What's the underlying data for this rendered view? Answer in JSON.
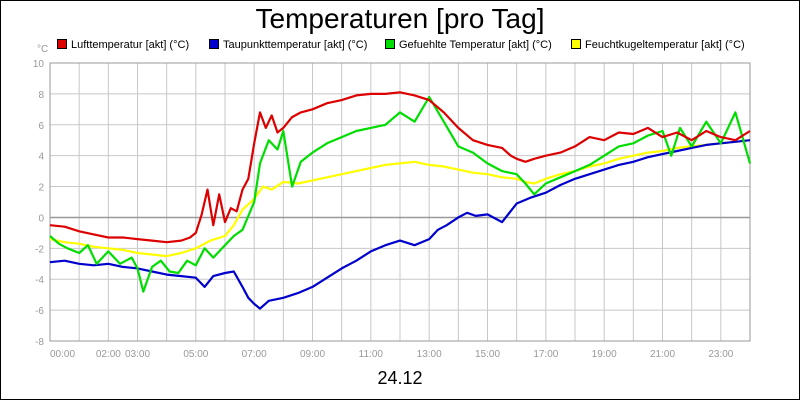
{
  "chart_data": {
    "type": "line",
    "title": "Temperaturen [pro Tag]",
    "ylabel": "°C",
    "xlabel": "24.12",
    "ylim": [
      -8,
      10
    ],
    "xlim": [
      0,
      24
    ],
    "yticks": [
      "-8",
      "-6",
      "-4",
      "-2",
      "0",
      "2",
      "4",
      "6",
      "8",
      "10"
    ],
    "xticks": [
      "00:00",
      "02:00",
      "03:00",
      "05:00",
      "07:00",
      "09:00",
      "11:00",
      "13:00",
      "15:00",
      "17:00",
      "19:00",
      "21:00",
      "23:00"
    ],
    "xtick_hours": [
      0,
      2,
      3,
      5,
      7,
      9,
      11,
      13,
      15,
      17,
      19,
      21,
      23
    ],
    "grid": true,
    "legend_position": "top",
    "series": [
      {
        "name": "Lufttemperatur [akt] (°C)",
        "color": "#dd0000",
        "x": [
          0,
          0.5,
          1,
          1.5,
          2,
          2.5,
          3,
          3.5,
          4,
          4.5,
          4.8,
          5,
          5.2,
          5.4,
          5.6,
          5.8,
          6,
          6.2,
          6.4,
          6.6,
          6.8,
          7,
          7.2,
          7.4,
          7.6,
          7.8,
          8,
          8.3,
          8.6,
          9,
          9.5,
          10,
          10.5,
          11,
          11.5,
          12,
          12.5,
          13,
          13.5,
          14,
          14.5,
          15,
          15.5,
          15.8,
          16,
          16.3,
          16.6,
          17,
          17.5,
          18,
          18.5,
          19,
          19.5,
          20,
          20.5,
          21,
          21.5,
          22,
          22.5,
          23,
          23.5,
          24
        ],
        "values": [
          -0.5,
          -0.6,
          -0.9,
          -1.1,
          -1.3,
          -1.3,
          -1.4,
          -1.5,
          -1.6,
          -1.5,
          -1.3,
          -1.0,
          0.2,
          1.8,
          -0.5,
          1.5,
          -0.3,
          0.6,
          0.4,
          1.8,
          2.5,
          4.8,
          6.8,
          5.8,
          6.6,
          5.5,
          5.8,
          6.5,
          6.8,
          7.0,
          7.4,
          7.6,
          7.9,
          8.0,
          8.0,
          8.1,
          7.9,
          7.6,
          6.8,
          5.8,
          5.0,
          4.7,
          4.5,
          4.0,
          3.8,
          3.6,
          3.8,
          4.0,
          4.2,
          4.6,
          5.2,
          5.0,
          5.5,
          5.4,
          5.8,
          5.2,
          5.5,
          5.0,
          5.6,
          5.2,
          5.0,
          5.6
        ]
      },
      {
        "name": "Taupunkttemperatur [akt] (°C)",
        "color": "#0000cc",
        "x": [
          0,
          0.5,
          1,
          1.5,
          2,
          2.5,
          3,
          3.5,
          4,
          4.5,
          5,
          5.3,
          5.6,
          6,
          6.3,
          6.6,
          6.8,
          7,
          7.2,
          7.5,
          8,
          8.5,
          9,
          9.5,
          10,
          10.5,
          11,
          11.5,
          12,
          12.5,
          13,
          13.3,
          13.6,
          14,
          14.3,
          14.6,
          15,
          15.5,
          16,
          16.5,
          17,
          17.5,
          18,
          18.5,
          19,
          19.5,
          20,
          20.5,
          21,
          21.5,
          22,
          22.5,
          23,
          23.5,
          24
        ],
        "values": [
          -2.9,
          -2.8,
          -3.0,
          -3.1,
          -3.0,
          -3.2,
          -3.3,
          -3.5,
          -3.7,
          -3.8,
          -3.9,
          -4.5,
          -3.8,
          -3.6,
          -3.5,
          -4.5,
          -5.2,
          -5.6,
          -5.9,
          -5.4,
          -5.2,
          -4.9,
          -4.5,
          -3.9,
          -3.3,
          -2.8,
          -2.2,
          -1.8,
          -1.5,
          -1.8,
          -1.4,
          -0.8,
          -0.5,
          0.0,
          0.3,
          0.1,
          0.2,
          -0.3,
          0.9,
          1.3,
          1.6,
          2.1,
          2.5,
          2.8,
          3.1,
          3.4,
          3.6,
          3.9,
          4.1,
          4.3,
          4.5,
          4.7,
          4.8,
          4.9,
          5.0
        ]
      },
      {
        "name": "Gefuehlte Temperatur [akt] (°C)",
        "color": "#00dd00",
        "x": [
          0,
          0.3,
          0.6,
          1,
          1.3,
          1.6,
          2,
          2.4,
          2.8,
          3,
          3.2,
          3.5,
          3.8,
          4.1,
          4.4,
          4.7,
          5,
          5.3,
          5.6,
          6,
          6.3,
          6.6,
          7,
          7.2,
          7.5,
          7.8,
          8,
          8.3,
          8.6,
          9,
          9.5,
          10,
          10.5,
          11,
          11.5,
          12,
          12.5,
          13,
          13.5,
          14,
          14.5,
          15,
          15.5,
          16,
          16.3,
          16.6,
          17,
          17.5,
          18,
          18.5,
          19,
          19.5,
          20,
          20.5,
          21,
          21.3,
          21.6,
          22,
          22.5,
          23,
          23.5,
          24
        ],
        "values": [
          -1.2,
          -1.7,
          -2.0,
          -2.3,
          -1.8,
          -3.0,
          -2.2,
          -3.0,
          -2.6,
          -3.3,
          -4.8,
          -3.2,
          -2.8,
          -3.5,
          -3.6,
          -2.8,
          -3.1,
          -2.0,
          -2.6,
          -1.8,
          -1.2,
          -0.8,
          1.0,
          3.5,
          5.0,
          4.4,
          5.6,
          2.0,
          3.6,
          4.2,
          4.8,
          5.2,
          5.6,
          5.8,
          6.0,
          6.8,
          6.2,
          7.8,
          6.2,
          4.6,
          4.2,
          3.5,
          3.0,
          2.8,
          2.2,
          1.5,
          2.2,
          2.6,
          3.0,
          3.4,
          4.0,
          4.6,
          4.8,
          5.3,
          5.6,
          4.0,
          5.8,
          4.6,
          6.2,
          4.8,
          6.8,
          3.5
        ]
      },
      {
        "name": "Feuchtkugeltemperatur [akt] (°C)",
        "color": "#ffff00",
        "x": [
          0,
          0.5,
          1,
          1.5,
          2,
          2.5,
          3,
          3.5,
          4,
          4.5,
          5,
          5.5,
          6,
          6.3,
          6.6,
          7,
          7.3,
          7.6,
          8,
          8.5,
          9,
          9.5,
          10,
          10.5,
          11,
          11.5,
          12,
          12.5,
          13,
          13.5,
          14,
          14.5,
          15,
          15.5,
          16,
          16.3,
          16.6,
          17,
          17.5,
          18,
          18.5,
          19,
          19.5,
          20,
          20.5,
          21,
          21.5,
          22,
          22.5,
          23,
          23.5,
          24
        ],
        "values": [
          -1.4,
          -1.6,
          -1.7,
          -1.9,
          -2.0,
          -2.1,
          -2.3,
          -2.4,
          -2.5,
          -2.3,
          -2.0,
          -1.5,
          -1.2,
          -0.5,
          0.5,
          1.2,
          2.0,
          1.8,
          2.3,
          2.2,
          2.4,
          2.6,
          2.8,
          3.0,
          3.2,
          3.4,
          3.5,
          3.6,
          3.4,
          3.3,
          3.1,
          2.9,
          2.8,
          2.6,
          2.5,
          2.3,
          2.2,
          2.5,
          2.8,
          3.0,
          3.3,
          3.5,
          3.8,
          4.0,
          4.2,
          4.3,
          4.5,
          4.6,
          4.7,
          4.8,
          4.9,
          5.0
        ]
      }
    ]
  }
}
